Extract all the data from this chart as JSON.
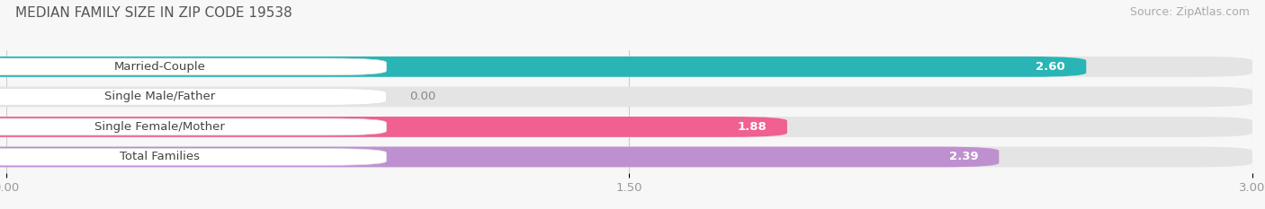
{
  "title": "MEDIAN FAMILY SIZE IN ZIP CODE 19538",
  "source": "Source: ZipAtlas.com",
  "categories": [
    "Married-Couple",
    "Single Male/Father",
    "Single Female/Mother",
    "Total Families"
  ],
  "values": [
    2.6,
    0.0,
    1.88,
    2.39
  ],
  "bar_colors": [
    "#29b5b5",
    "#aab4e8",
    "#f06090",
    "#bf90d0"
  ],
  "background_color": "#f7f7f7",
  "bar_bg_color": "#e8e8e8",
  "xlim": [
    0,
    3.0
  ],
  "xmin": -0.18,
  "xticks": [
    0.0,
    1.5,
    3.0
  ],
  "label_fontsize": 9.5,
  "value_fontsize": 9.5,
  "title_fontsize": 11,
  "source_fontsize": 9
}
